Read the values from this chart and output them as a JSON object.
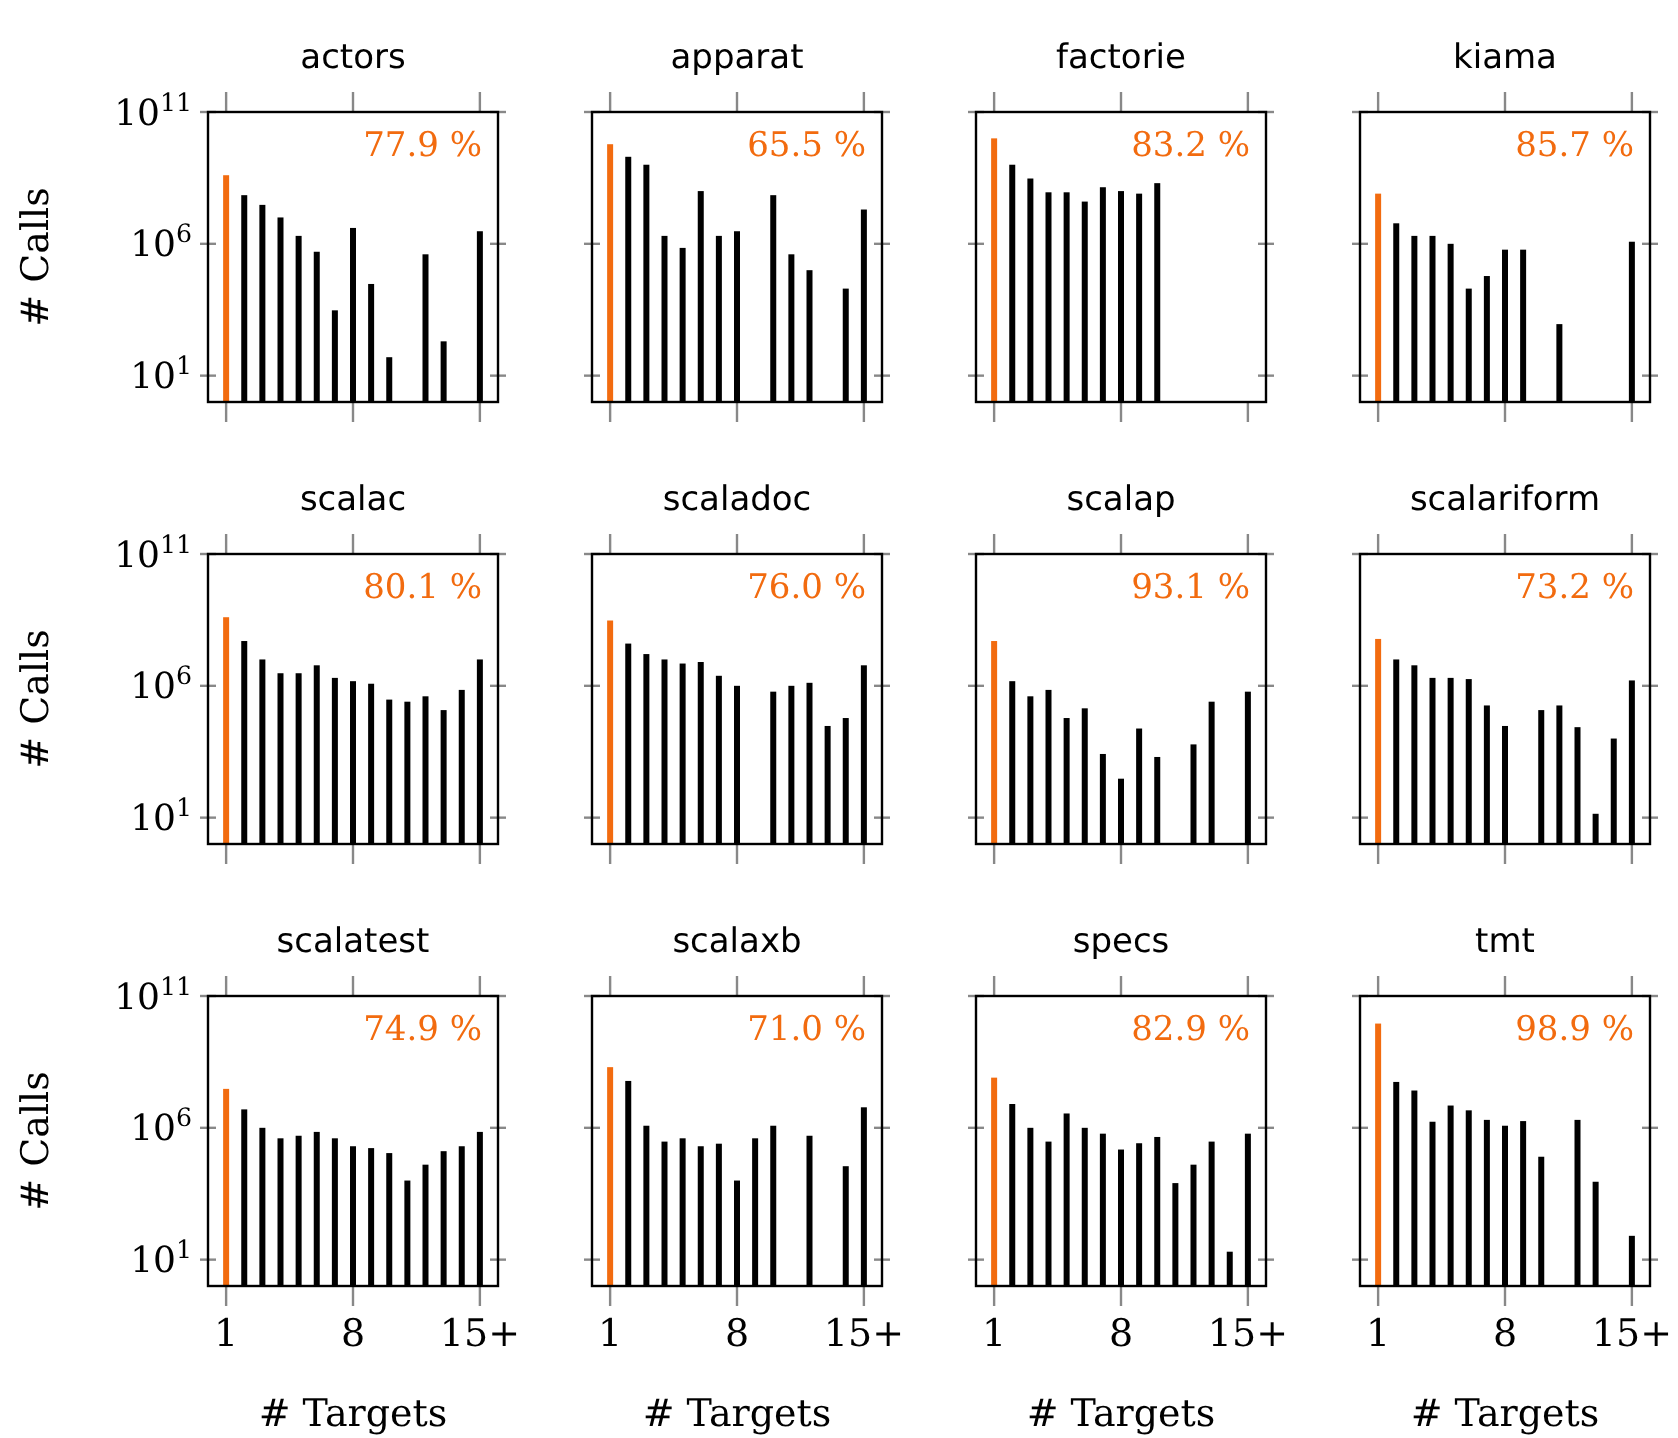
{
  "chart_data": [
    {
      "type": "bar",
      "title": "actors",
      "ylabel": "# Calls",
      "log": true,
      "xlim": [
        0,
        16
      ],
      "xticks": [
        {
          "value": 1,
          "label": null
        },
        {
          "value": 8,
          "label": null
        },
        {
          "value": 15,
          "label": null
        }
      ],
      "ylim": [
        1,
        100000000000
      ],
      "yticks": [
        {
          "value": 10,
          "label": "10$^{1}$"
        },
        {
          "value": 1000000,
          "label": "10$^{6}$"
        },
        {
          "value": 100000000000,
          "label": "10$^{11}$"
        }
      ],
      "tick_labels": "y",
      "annotations": [
        "77.9 %"
      ],
      "x": [
        1,
        2,
        3,
        4,
        5,
        6,
        7,
        8,
        9,
        10,
        11,
        12,
        13,
        14,
        15
      ],
      "series": [
        {
          "colors": [
            "#f26b0f",
            "#000000",
            "#000000",
            "#000000",
            "#000000",
            "#000000",
            "#000000",
            "#000000",
            "#000000",
            "#000000",
            "#000000",
            "#000000",
            "#000000",
            "#000000",
            "#000000"
          ],
          "values": [
            400000000,
            70000000,
            30000000,
            10000000,
            2000000,
            500000,
            3000,
            4000000,
            30000,
            50,
            null,
            400000,
            200,
            null,
            3000000
          ]
        }
      ]
    },
    {
      "type": "bar",
      "title": "apparat",
      "log": true,
      "xlim": [
        0,
        16
      ],
      "xticks": [
        {
          "value": 1,
          "label": null
        },
        {
          "value": 8,
          "label": null
        },
        {
          "value": 15,
          "label": null
        }
      ],
      "ylim": [
        1,
        100000000000
      ],
      "yticks": [
        {
          "value": 10,
          "label": null
        },
        {
          "value": 1000000,
          "label": null
        },
        {
          "value": 100000000000,
          "label": null
        }
      ],
      "tick_labels": false,
      "annotations": [
        "65.5 %"
      ],
      "x": [
        1,
        2,
        3,
        4,
        5,
        6,
        7,
        8,
        9,
        10,
        11,
        12,
        13,
        14,
        15
      ],
      "series": [
        {
          "colors": [
            "#f26b0f",
            "#000000",
            "#000000",
            "#000000",
            "#000000",
            "#000000",
            "#000000",
            "#000000",
            "#000000",
            "#000000",
            "#000000",
            "#000000",
            "#000000",
            "#000000",
            "#000000"
          ],
          "values": [
            6000000000,
            2000000000,
            1000000000,
            2000000,
            700000,
            100000000,
            2000000,
            3000000,
            null,
            70000000,
            400000,
            100000,
            null,
            20000,
            20000000
          ]
        }
      ]
    },
    {
      "type": "bar",
      "title": "factorie",
      "log": true,
      "xlim": [
        0,
        16
      ],
      "xticks": [
        {
          "value": 1,
          "label": null
        },
        {
          "value": 8,
          "label": null
        },
        {
          "value": 15,
          "label": null
        }
      ],
      "ylim": [
        1,
        100000000000
      ],
      "yticks": [
        {
          "value": 10,
          "label": null
        },
        {
          "value": 1000000,
          "label": null
        },
        {
          "value": 100000000000,
          "label": null
        }
      ],
      "tick_labels": false,
      "annotations": [
        "83.2 %"
      ],
      "x": [
        1,
        2,
        3,
        4,
        5,
        6,
        7,
        8,
        9,
        10
      ],
      "series": [
        {
          "colors": [
            "#f26b0f",
            "#000000",
            "#000000",
            "#000000",
            "#000000",
            "#000000",
            "#000000",
            "#000000",
            "#000000",
            "#000000"
          ],
          "values": [
            10000000000,
            1000000000,
            300000000,
            90000000,
            90000000,
            40000000,
            140000000,
            100000000,
            80000000,
            200000000
          ]
        }
      ]
    },
    {
      "type": "bar",
      "title": "kiama",
      "log": true,
      "xlim": [
        0,
        16
      ],
      "xticks": [
        {
          "value": 1,
          "label": null
        },
        {
          "value": 8,
          "label": null
        },
        {
          "value": 15,
          "label": null
        }
      ],
      "ylim": [
        1,
        100000000000
      ],
      "yticks": [
        {
          "value": 10,
          "label": null
        },
        {
          "value": 1000000,
          "label": null
        },
        {
          "value": 100000000000,
          "label": null
        }
      ],
      "tick_labels": false,
      "annotations": [
        "85.7 %"
      ],
      "x": [
        1,
        2,
        3,
        4,
        5,
        6,
        7,
        8,
        9,
        10,
        11,
        12,
        13,
        14,
        15
      ],
      "series": [
        {
          "colors": [
            "#f26b0f",
            "#000000",
            "#000000",
            "#000000",
            "#000000",
            "#000000",
            "#000000",
            "#000000",
            "#000000",
            "#000000",
            "#000000",
            "#000000",
            "#000000",
            "#000000",
            "#000000"
          ],
          "values": [
            80000000,
            6000000,
            2000000,
            2000000,
            1000000,
            20000,
            60000,
            600000,
            600000,
            null,
            900,
            null,
            null,
            null,
            1200000
          ]
        }
      ]
    },
    {
      "type": "bar",
      "title": "scalac",
      "ylabel": "# Calls",
      "log": true,
      "xlim": [
        0,
        16
      ],
      "xticks": [
        {
          "value": 1,
          "label": null
        },
        {
          "value": 8,
          "label": null
        },
        {
          "value": 15,
          "label": null
        }
      ],
      "ylim": [
        1,
        100000000000
      ],
      "yticks": [
        {
          "value": 10,
          "label": "10$^{1}$"
        },
        {
          "value": 1000000,
          "label": "10$^{6}$"
        },
        {
          "value": 100000000000,
          "label": "10$^{11}$"
        }
      ],
      "tick_labels": "y",
      "annotations": [
        "80.1 %"
      ],
      "x": [
        1,
        2,
        3,
        4,
        5,
        6,
        7,
        8,
        9,
        10,
        11,
        12,
        13,
        14,
        15
      ],
      "series": [
        {
          "colors": [
            "#f26b0f",
            "#000000",
            "#000000",
            "#000000",
            "#000000",
            "#000000",
            "#000000",
            "#000000",
            "#000000",
            "#000000",
            "#000000",
            "#000000",
            "#000000",
            "#000000",
            "#000000"
          ],
          "values": [
            400000000,
            50000000,
            10000000,
            3000000,
            3000000,
            6000000,
            2000000,
            1500000,
            1200000,
            300000,
            250000,
            400000,
            120000,
            700000,
            10000000
          ]
        }
      ]
    },
    {
      "type": "bar",
      "title": "scaladoc",
      "log": true,
      "xlim": [
        0,
        16
      ],
      "xticks": [
        {
          "value": 1,
          "label": null
        },
        {
          "value": 8,
          "label": null
        },
        {
          "value": 15,
          "label": null
        }
      ],
      "ylim": [
        1,
        100000000000
      ],
      "yticks": [
        {
          "value": 10,
          "label": null
        },
        {
          "value": 1000000,
          "label": null
        },
        {
          "value": 100000000000,
          "label": null
        }
      ],
      "tick_labels": false,
      "annotations": [
        "76.0 %"
      ],
      "x": [
        1,
        2,
        3,
        4,
        5,
        6,
        7,
        8,
        9,
        10,
        11,
        12,
        13,
        14,
        15
      ],
      "series": [
        {
          "colors": [
            "#f26b0f",
            "#000000",
            "#000000",
            "#000000",
            "#000000",
            "#000000",
            "#000000",
            "#000000",
            "#000000",
            "#000000",
            "#000000",
            "#000000",
            "#000000",
            "#000000",
            "#000000"
          ],
          "values": [
            300000000,
            40000000,
            16000000,
            10000000,
            7000000,
            8000000,
            2400000,
            1000000,
            null,
            600000,
            1000000,
            1300000,
            30000,
            60000,
            6000000
          ]
        }
      ]
    },
    {
      "type": "bar",
      "title": "scalap",
      "log": true,
      "xlim": [
        0,
        16
      ],
      "xticks": [
        {
          "value": 1,
          "label": null
        },
        {
          "value": 8,
          "label": null
        },
        {
          "value": 15,
          "label": null
        }
      ],
      "ylim": [
        1,
        100000000000
      ],
      "yticks": [
        {
          "value": 10,
          "label": null
        },
        {
          "value": 1000000,
          "label": null
        },
        {
          "value": 100000000000,
          "label": null
        }
      ],
      "tick_labels": false,
      "annotations": [
        "93.1 %"
      ],
      "x": [
        1,
        2,
        3,
        4,
        5,
        6,
        7,
        8,
        9,
        10,
        11,
        12,
        13,
        14,
        15
      ],
      "series": [
        {
          "colors": [
            "#f26b0f",
            "#000000",
            "#000000",
            "#000000",
            "#000000",
            "#000000",
            "#000000",
            "#000000",
            "#000000",
            "#000000",
            "#000000",
            "#000000",
            "#000000",
            "#000000",
            "#000000"
          ],
          "values": [
            50000000,
            1500000,
            400000,
            700000,
            60000,
            140000,
            2600,
            300,
            24000,
            2000,
            null,
            6000,
            250000,
            null,
            600000
          ]
        }
      ]
    },
    {
      "type": "bar",
      "title": "scalariform",
      "log": true,
      "xlim": [
        0,
        16
      ],
      "xticks": [
        {
          "value": 1,
          "label": null
        },
        {
          "value": 8,
          "label": null
        },
        {
          "value": 15,
          "label": null
        }
      ],
      "ylim": [
        1,
        100000000000
      ],
      "yticks": [
        {
          "value": 10,
          "label": null
        },
        {
          "value": 1000000,
          "label": null
        },
        {
          "value": 100000000000,
          "label": null
        }
      ],
      "tick_labels": false,
      "annotations": [
        "73.2 %"
      ],
      "x": [
        1,
        2,
        3,
        4,
        5,
        6,
        7,
        8,
        9,
        10,
        11,
        12,
        13,
        14,
        15
      ],
      "series": [
        {
          "colors": [
            "#f26b0f",
            "#000000",
            "#000000",
            "#000000",
            "#000000",
            "#000000",
            "#000000",
            "#000000",
            "#000000",
            "#000000",
            "#000000",
            "#000000",
            "#000000",
            "#000000",
            "#000000"
          ],
          "values": [
            60000000,
            10000000,
            6000000,
            2000000,
            2000000,
            1800000,
            180000,
            30000,
            null,
            120000,
            180000,
            27000,
            14,
            10000,
            1600000
          ]
        }
      ]
    },
    {
      "type": "bar",
      "title": "scalatest",
      "xlabel": "# Targets",
      "ylabel": "# Calls",
      "log": true,
      "xlim": [
        0,
        16
      ],
      "xticks": [
        {
          "value": 1,
          "label": "1"
        },
        {
          "value": 8,
          "label": "8"
        },
        {
          "value": 15,
          "label": "15+"
        }
      ],
      "ylim": [
        1,
        100000000000
      ],
      "yticks": [
        {
          "value": 10,
          "label": "10$^{1}$"
        },
        {
          "value": 1000000,
          "label": "10$^{6}$"
        },
        {
          "value": 100000000000,
          "label": "10$^{11}$"
        }
      ],
      "annotations": [
        "74.9 %"
      ],
      "x": [
        1,
        2,
        3,
        4,
        5,
        6,
        7,
        8,
        9,
        10,
        11,
        12,
        13,
        14,
        15
      ],
      "series": [
        {
          "colors": [
            "#f26b0f",
            "#000000",
            "#000000",
            "#000000",
            "#000000",
            "#000000",
            "#000000",
            "#000000",
            "#000000",
            "#000000",
            "#000000",
            "#000000",
            "#000000",
            "#000000",
            "#000000"
          ],
          "values": [
            30000000,
            5000000,
            1000000,
            400000,
            500000,
            700000,
            400000,
            200000,
            170000,
            110000,
            10000,
            40000,
            130000,
            200000,
            700000
          ]
        }
      ]
    },
    {
      "type": "bar",
      "title": "scalaxb",
      "xlabel": "# Targets",
      "log": true,
      "xlim": [
        0,
        16
      ],
      "xticks": [
        {
          "value": 1,
          "label": "1"
        },
        {
          "value": 8,
          "label": "8"
        },
        {
          "value": 15,
          "label": "15+"
        }
      ],
      "ylim": [
        1,
        100000000000
      ],
      "yticks": [
        {
          "value": 10,
          "label": null
        },
        {
          "value": 1000000,
          "label": null
        },
        {
          "value": 100000000000,
          "label": null
        }
      ],
      "tick_labels": "x",
      "annotations": [
        "71.0 %"
      ],
      "x": [
        1,
        2,
        3,
        4,
        5,
        6,
        7,
        8,
        9,
        10,
        11,
        12,
        13,
        14,
        15
      ],
      "series": [
        {
          "colors": [
            "#f26b0f",
            "#000000",
            "#000000",
            "#000000",
            "#000000",
            "#000000",
            "#000000",
            "#000000",
            "#000000",
            "#000000",
            "#000000",
            "#000000",
            "#000000",
            "#000000",
            "#000000"
          ],
          "values": [
            200000000,
            60000000,
            1200000,
            300000,
            400000,
            200000,
            250000,
            10000,
            400000,
            1200000,
            null,
            500000,
            null,
            35000,
            6000000
          ]
        }
      ]
    },
    {
      "type": "bar",
      "title": "specs",
      "xlabel": "# Targets",
      "log": true,
      "xlim": [
        0,
        16
      ],
      "xticks": [
        {
          "value": 1,
          "label": "1"
        },
        {
          "value": 8,
          "label": "8"
        },
        {
          "value": 15,
          "label": "15+"
        }
      ],
      "ylim": [
        1,
        100000000000
      ],
      "yticks": [
        {
          "value": 10,
          "label": null
        },
        {
          "value": 1000000,
          "label": null
        },
        {
          "value": 100000000000,
          "label": null
        }
      ],
      "tick_labels": "x",
      "annotations": [
        "82.9 %"
      ],
      "x": [
        1,
        2,
        3,
        4,
        5,
        6,
        7,
        8,
        9,
        10,
        11,
        12,
        13,
        14,
        15
      ],
      "series": [
        {
          "colors": [
            "#f26b0f",
            "#000000",
            "#000000",
            "#000000",
            "#000000",
            "#000000",
            "#000000",
            "#000000",
            "#000000",
            "#000000",
            "#000000",
            "#000000",
            "#000000",
            "#000000",
            "#000000"
          ],
          "values": [
            80000000,
            8000000,
            1000000,
            300000,
            3500000,
            1000000,
            600000,
            150000,
            260000,
            450000,
            8000,
            40000,
            300000,
            20,
            600000
          ]
        }
      ]
    },
    {
      "type": "bar",
      "title": "tmt",
      "xlabel": "# Targets",
      "log": true,
      "xlim": [
        0,
        16
      ],
      "xticks": [
        {
          "value": 1,
          "label": "1"
        },
        {
          "value": 8,
          "label": "8"
        },
        {
          "value": 15,
          "label": "15+"
        }
      ],
      "ylim": [
        1,
        100000000000
      ],
      "yticks": [
        {
          "value": 10,
          "label": null
        },
        {
          "value": 1000000,
          "label": null
        },
        {
          "value": 100000000000,
          "label": null
        }
      ],
      "tick_labels": "x",
      "annotations": [
        "98.9 %"
      ],
      "x": [
        1,
        2,
        3,
        4,
        5,
        6,
        7,
        8,
        9,
        10,
        11,
        12,
        13,
        14,
        15
      ],
      "series": [
        {
          "colors": [
            "#f26b0f",
            "#000000",
            "#000000",
            "#000000",
            "#000000",
            "#000000",
            "#000000",
            "#000000",
            "#000000",
            "#000000",
            "#000000",
            "#000000",
            "#000000",
            "#000000",
            "#000000"
          ],
          "values": [
            9000000000,
            55000000,
            26000000,
            1700000,
            7000000,
            4600000,
            2000000,
            1200000,
            1800000,
            80000,
            null,
            2000000,
            9000,
            null,
            80
          ]
        }
      ]
    }
  ]
}
